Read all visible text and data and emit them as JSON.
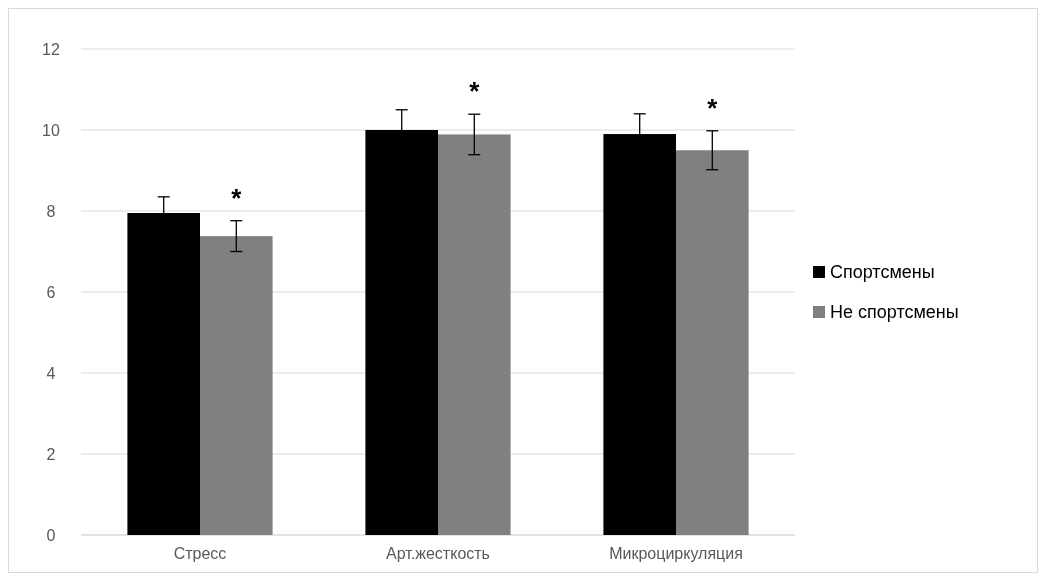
{
  "chart_data": {
    "type": "bar",
    "categories": [
      "Стресс",
      "Арт.жесткость",
      "Микроциркуляция"
    ],
    "series": [
      {
        "name": "Спортсмены",
        "color": "#000000",
        "values": [
          7.95,
          10.0,
          9.9
        ],
        "errors": [
          0.4,
          0.5,
          0.5
        ]
      },
      {
        "name": "Не спортсмены",
        "color": "#808080",
        "values": [
          7.38,
          9.89,
          9.5
        ],
        "errors": [
          0.38,
          0.5,
          0.48
        ]
      }
    ],
    "ylim": [
      0,
      12
    ],
    "yticks": [
      0,
      2,
      4,
      6,
      8,
      10,
      12
    ],
    "grid": "y",
    "legend": "right",
    "annotations": [
      "*",
      "*",
      "*"
    ]
  }
}
